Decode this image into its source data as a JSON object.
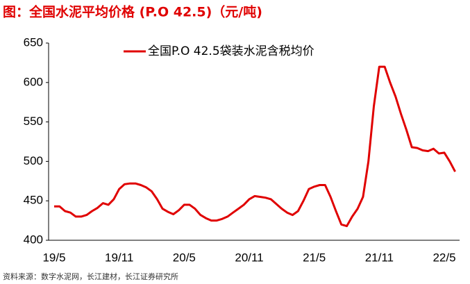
{
  "chart_data": {
    "type": "line",
    "title": "图：全国水泥平均价格 (P.O 42.5)（元/吨)",
    "source": "资料来源：数字水泥网，长江建材，长江证券研究所",
    "categories": [
      "19/5",
      null,
      null,
      null,
      null,
      null,
      null,
      null,
      null,
      null,
      null,
      null,
      "19/11",
      null,
      null,
      null,
      null,
      null,
      null,
      null,
      null,
      null,
      null,
      null,
      "20/5",
      null,
      null,
      null,
      null,
      null,
      null,
      null,
      null,
      null,
      null,
      null,
      "20/11",
      null,
      null,
      null,
      null,
      null,
      null,
      null,
      null,
      null,
      null,
      null,
      "21/5",
      null,
      null,
      null,
      null,
      null,
      null,
      null,
      null,
      null,
      null,
      null,
      "21/11",
      null,
      null,
      null,
      null,
      null,
      null,
      null,
      null,
      null,
      null,
      null,
      "22/5",
      null,
      null
    ],
    "series": [
      {
        "name": "全国P.O 42.5袋装水泥含税均价",
        "color": "#e00000",
        "values": [
          443,
          443,
          437,
          435,
          430,
          430,
          432,
          437,
          441,
          447,
          445,
          452,
          465,
          471,
          472,
          472,
          470,
          467,
          462,
          452,
          440,
          436,
          433,
          438,
          445,
          445,
          440,
          432,
          428,
          425,
          425,
          427,
          430,
          435,
          440,
          445,
          452,
          456,
          455,
          454,
          452,
          446,
          440,
          435,
          432,
          437,
          450,
          465,
          468,
          470,
          470,
          455,
          437,
          420,
          418,
          430,
          440,
          455,
          500,
          570,
          620,
          620,
          600,
          582,
          560,
          540,
          518,
          517,
          514,
          513,
          516,
          510,
          511,
          500,
          487
        ]
      }
    ],
    "ylim": [
      400,
      650
    ],
    "yticks": [
      400,
      450,
      500,
      550,
      600,
      650
    ],
    "grid": false,
    "legend": "top"
  }
}
